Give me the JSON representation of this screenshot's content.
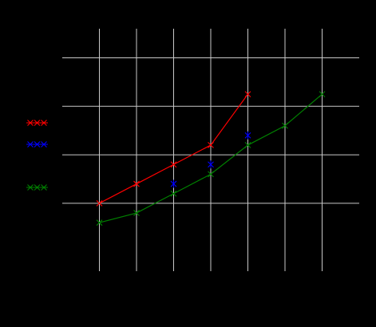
{
  "chart_data": {
    "type": "line",
    "title": "",
    "xlabel": "",
    "ylabel": "",
    "x": [
      1,
      2,
      3,
      4,
      5,
      6,
      7
    ],
    "xlim": [
      0,
      8
    ],
    "ylim": [
      0.6,
      5.6
    ],
    "grid": true,
    "legend_entries": [
      {
        "label": "XXX",
        "color": "#ff0000"
      },
      {
        "label": "XXX",
        "color": "#0000ff"
      },
      {
        "label": "XXX",
        "color": "#008000"
      }
    ],
    "series": [
      {
        "color": "#ff0000",
        "marker": "x",
        "line": true,
        "x": [
          1,
          2,
          3,
          4,
          5
        ],
        "y": [
          2.0,
          2.4,
          2.8,
          3.2,
          4.25
        ]
      },
      {
        "color": "#0000ff",
        "marker": "x",
        "line": false,
        "x": [
          3,
          4,
          5
        ],
        "y": [
          2.4,
          2.8,
          3.4
        ]
      },
      {
        "color": "#008000",
        "marker": "x",
        "line": true,
        "x": [
          1,
          2,
          3,
          4,
          5,
          6,
          7
        ],
        "y": [
          1.6,
          1.8,
          2.2,
          2.6,
          3.2,
          3.6,
          4.25
        ]
      }
    ]
  }
}
